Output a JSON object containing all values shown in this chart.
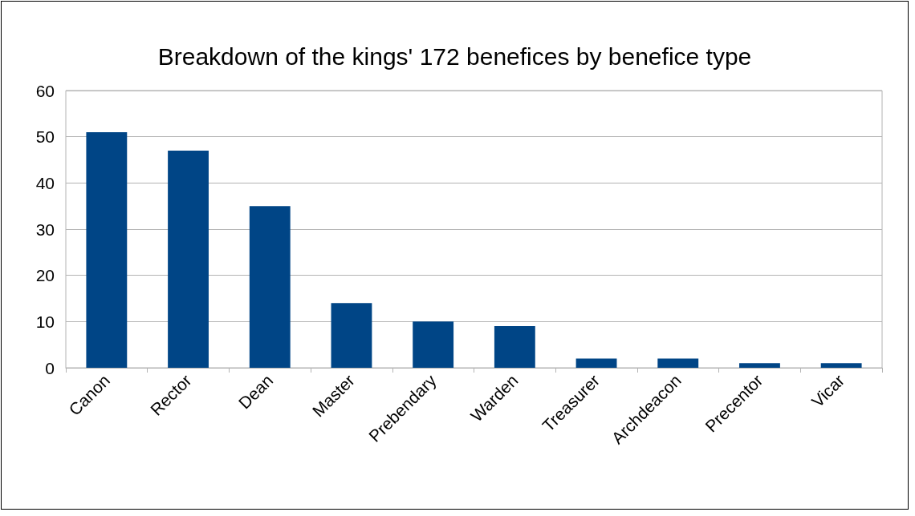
{
  "chart_data": {
    "type": "bar",
    "title": "Breakdown of the kings' 172 benefices by benefice type",
    "categories": [
      "Canon",
      "Rector",
      "Dean",
      "Master",
      "Prebendary",
      "Warden",
      "Treasurer",
      "Archdeacon",
      "Precentor",
      "Vicar"
    ],
    "values": [
      51,
      47,
      35,
      14,
      10,
      9,
      2,
      2,
      1,
      1
    ],
    "color": "#004586",
    "ylim": [
      0,
      60
    ],
    "yticks": [
      0,
      10,
      20,
      30,
      40,
      50,
      60
    ],
    "grid": "y"
  }
}
